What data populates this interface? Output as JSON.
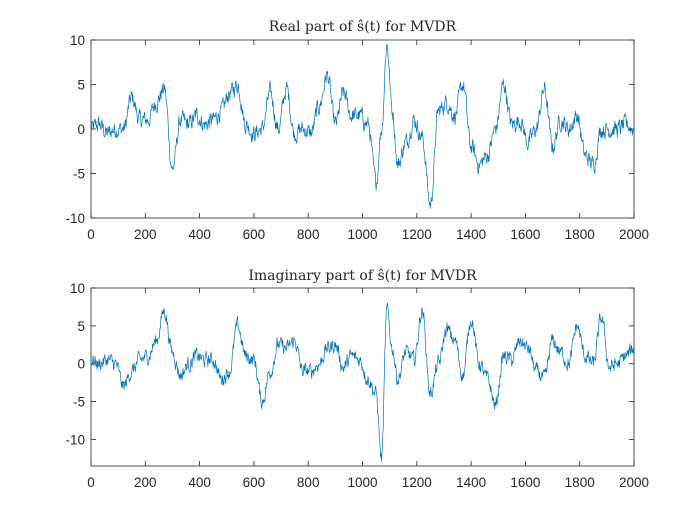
{
  "colors": {
    "series": "#0072BD",
    "axis": "#262626",
    "background": "#ffffff"
  },
  "chart_data": [
    {
      "type": "line",
      "title": "Real part of ŝ(t) for MVDR",
      "xlim": [
        0,
        2000
      ],
      "ylim": [
        -10,
        10
      ],
      "xticks": [
        "0",
        "200",
        "400",
        "600",
        "800",
        "1000",
        "1200",
        "1400",
        "1600",
        "1800",
        "2000"
      ],
      "yticks": [
        "10",
        "5",
        "0",
        "-5",
        "-10"
      ],
      "grid": false,
      "series": [
        {
          "x": [
            0,
            30,
            60,
            90,
            120,
            150,
            180,
            210,
            240,
            270,
            300,
            330,
            360,
            390,
            420,
            450,
            480,
            510,
            540,
            570,
            600,
            630,
            660,
            690,
            720,
            750,
            780,
            810,
            840,
            870,
            900,
            930,
            960,
            990,
            1020,
            1050,
            1070,
            1090,
            1110,
            1130,
            1160,
            1190,
            1220,
            1250,
            1280,
            1310,
            1340,
            1370,
            1400,
            1430,
            1460,
            1490,
            1520,
            1550,
            1580,
            1610,
            1640,
            1670,
            1700,
            1730,
            1760,
            1790,
            1820,
            1850,
            1880,
            1910,
            1940,
            1970,
            2000
          ],
          "y": [
            0,
            0.5,
            -0.5,
            0,
            0,
            3.5,
            1,
            1,
            3,
            4.5,
            -4.5,
            1,
            0.5,
            1.5,
            0.5,
            1,
            2,
            4,
            5,
            0.5,
            -0.5,
            0,
            4,
            0,
            4.5,
            -0.5,
            0,
            -0.5,
            2.5,
            6,
            0.5,
            4,
            1.5,
            1.5,
            0.5,
            -6,
            0,
            9.5,
            2,
            -4,
            -1.5,
            1,
            -1,
            -8.5,
            2,
            3,
            1.5,
            5,
            -2,
            -4,
            -3,
            0,
            5,
            0.5,
            1,
            -1.5,
            0,
            4.5,
            -2,
            1,
            0,
            1.5,
            -3,
            -4,
            0,
            0,
            0,
            0.5,
            0
          ]
        }
      ]
    },
    {
      "type": "line",
      "title": "Imaginary part of ŝ(t) for MVDR",
      "xlim": [
        0,
        2000
      ],
      "ylim": [
        -13.5,
        10
      ],
      "xticks": [
        "0",
        "200",
        "400",
        "600",
        "800",
        "1000",
        "1200",
        "1400",
        "1600",
        "1800",
        "2000"
      ],
      "yticks": [
        "10",
        "5",
        "0",
        "-5",
        "-10"
      ],
      "grid": false,
      "series": [
        {
          "x": [
            0,
            30,
            60,
            90,
            120,
            150,
            180,
            210,
            240,
            270,
            300,
            330,
            360,
            390,
            420,
            450,
            480,
            510,
            540,
            570,
            600,
            630,
            660,
            690,
            720,
            750,
            780,
            810,
            840,
            870,
            900,
            930,
            960,
            990,
            1020,
            1050,
            1070,
            1090,
            1110,
            1130,
            1160,
            1190,
            1220,
            1250,
            1280,
            1310,
            1340,
            1370,
            1400,
            1430,
            1460,
            1490,
            1520,
            1550,
            1580,
            1610,
            1640,
            1670,
            1700,
            1730,
            1760,
            1790,
            1820,
            1850,
            1880,
            1910,
            1940,
            1970,
            2000
          ],
          "y": [
            0.5,
            0,
            0.5,
            0,
            -3,
            -1,
            0.5,
            1,
            3,
            7,
            1.5,
            -1.5,
            0,
            1,
            0.5,
            0.5,
            -2,
            -1,
            5,
            1,
            0.5,
            -5,
            -1,
            2.5,
            2,
            3,
            -1,
            -1,
            0,
            2,
            2.5,
            -0.5,
            1,
            0.5,
            -2,
            -4,
            -12.5,
            7,
            2,
            -2,
            1.5,
            0.5,
            7,
            -4,
            0,
            4.5,
            3,
            -1.5,
            6,
            0,
            -2,
            -5.5,
            1,
            0.5,
            3,
            2,
            -1,
            -2,
            3,
            1.5,
            0,
            5,
            1,
            0,
            6,
            -0.5,
            0,
            1,
            2
          ]
        }
      ]
    }
  ]
}
